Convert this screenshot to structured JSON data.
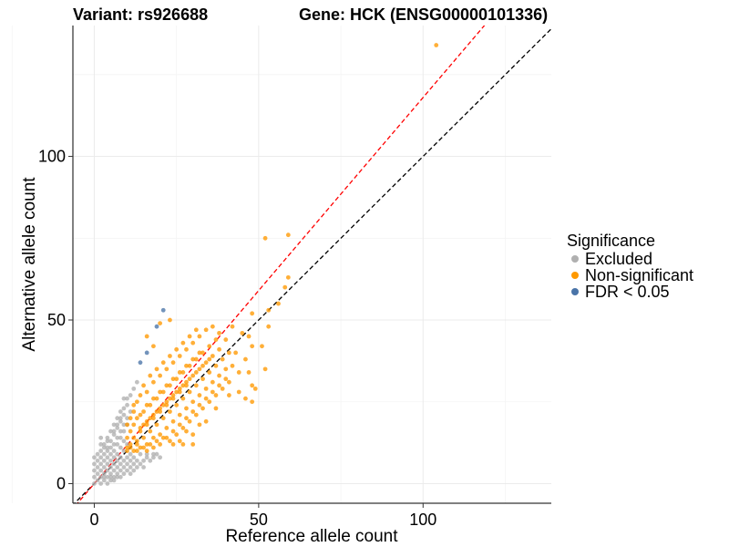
{
  "chart_data": {
    "type": "scatter",
    "title_left": "Variant: rs926688",
    "title_right": "Gene: HCK (ENSG00000101336)",
    "xlabel": "Reference allele count",
    "ylabel": "Alternative allele count",
    "xlim": [
      -6.5,
      139
    ],
    "ylim": [
      -6,
      140
    ],
    "xticks": [
      0,
      50,
      100
    ],
    "yticks": [
      0,
      50,
      100
    ],
    "grid": true,
    "legend": {
      "title": "Significance",
      "position": "right",
      "entries": [
        {
          "label": "Excluded",
          "color": "#b0b0b0"
        },
        {
          "label": "Non-significant",
          "color": "#ff9900"
        },
        {
          "label": "FDR < 0.05",
          "color": "#4a74a8"
        }
      ]
    },
    "reference_lines": [
      {
        "name": "identity",
        "slope": 1,
        "intercept": 0,
        "color": "#000000",
        "dash": "dashed"
      },
      {
        "name": "fit",
        "slope": 1.18,
        "intercept": 0,
        "color": "#ff0000",
        "dash": "dashed"
      }
    ],
    "series": [
      {
        "name": "Excluded",
        "color": "#b0b0b0",
        "points": [
          [
            0,
            0
          ],
          [
            1,
            1
          ],
          [
            0,
            2
          ],
          [
            2,
            0
          ],
          [
            1,
            3
          ],
          [
            3,
            1
          ],
          [
            2,
            2
          ],
          [
            0,
            4
          ],
          [
            4,
            0
          ],
          [
            1,
            5
          ],
          [
            2,
            4
          ],
          [
            3,
            3
          ],
          [
            4,
            2
          ],
          [
            5,
            1
          ],
          [
            0,
            6
          ],
          [
            2,
            6
          ],
          [
            3,
            5
          ],
          [
            4,
            4
          ],
          [
            5,
            3
          ],
          [
            6,
            2
          ],
          [
            1,
            7
          ],
          [
            3,
            7
          ],
          [
            4,
            6
          ],
          [
            5,
            5
          ],
          [
            6,
            4
          ],
          [
            7,
            3
          ],
          [
            2,
            8
          ],
          [
            4,
            8
          ],
          [
            5,
            7
          ],
          [
            6,
            6
          ],
          [
            7,
            5
          ],
          [
            8,
            4
          ],
          [
            3,
            9
          ],
          [
            5,
            9
          ],
          [
            6,
            8
          ],
          [
            7,
            7
          ],
          [
            8,
            6
          ],
          [
            9,
            5
          ],
          [
            2,
            10
          ],
          [
            4,
            11
          ],
          [
            6,
            10
          ],
          [
            7,
            9
          ],
          [
            8,
            8
          ],
          [
            9,
            7
          ],
          [
            10,
            6
          ],
          [
            3,
            12
          ],
          [
            5,
            13
          ],
          [
            7,
            12
          ],
          [
            8,
            11
          ],
          [
            9,
            10
          ],
          [
            10,
            8
          ],
          [
            11,
            7
          ],
          [
            4,
            14
          ],
          [
            6,
            15
          ],
          [
            8,
            14
          ],
          [
            9,
            13
          ],
          [
            10,
            12
          ],
          [
            11,
            9
          ],
          [
            12,
            8
          ],
          [
            5,
            16
          ],
          [
            7,
            17
          ],
          [
            9,
            16
          ],
          [
            6,
            18
          ],
          [
            8,
            19
          ],
          [
            10,
            18
          ],
          [
            7,
            20
          ],
          [
            9,
            21
          ],
          [
            8,
            22
          ],
          [
            10,
            24
          ],
          [
            9,
            26
          ],
          [
            11,
            27
          ],
          [
            12,
            29
          ],
          [
            13,
            31
          ],
          [
            3,
            2
          ],
          [
            5,
            2
          ],
          [
            6,
            1
          ],
          [
            7,
            2
          ],
          [
            8,
            2
          ],
          [
            9,
            3
          ],
          [
            10,
            4
          ],
          [
            11,
            5
          ],
          [
            12,
            6
          ],
          [
            13,
            7
          ],
          [
            14,
            6
          ],
          [
            15,
            7
          ],
          [
            16,
            8
          ],
          [
            11,
            3
          ],
          [
            13,
            5
          ],
          [
            15,
            5
          ],
          [
            17,
            7
          ],
          [
            18,
            8
          ],
          [
            14,
            9
          ],
          [
            16,
            9
          ],
          [
            18,
            9
          ],
          [
            12,
            4
          ],
          [
            20,
            8
          ],
          [
            19,
            9
          ],
          [
            4,
            10
          ],
          [
            2,
            12
          ],
          [
            1,
            9
          ],
          [
            0,
            8
          ],
          [
            3,
            11
          ],
          [
            2,
            14
          ],
          [
            5,
            11
          ],
          [
            6,
            12
          ],
          [
            4,
            13
          ],
          [
            7,
            14
          ],
          [
            6,
            16
          ],
          [
            8,
            16
          ],
          [
            7,
            18
          ],
          [
            9,
            18
          ],
          [
            8,
            20
          ],
          [
            10,
            20
          ],
          [
            9,
            23
          ],
          [
            11,
            22
          ],
          [
            10,
            26
          ]
        ]
      },
      {
        "name": "Non-significant",
        "color": "#ff9900",
        "points": [
          [
            10,
            10
          ],
          [
            11,
            12
          ],
          [
            12,
            10
          ],
          [
            10,
            14
          ],
          [
            13,
            13
          ],
          [
            14,
            11
          ],
          [
            11,
            16
          ],
          [
            12,
            18
          ],
          [
            15,
            14
          ],
          [
            16,
            12
          ],
          [
            13,
            20
          ],
          [
            14,
            17
          ],
          [
            17,
            16
          ],
          [
            18,
            14
          ],
          [
            12,
            22
          ],
          [
            15,
            22
          ],
          [
            16,
            19
          ],
          [
            19,
            18
          ],
          [
            20,
            15
          ],
          [
            13,
            25
          ],
          [
            17,
            24
          ],
          [
            18,
            21
          ],
          [
            21,
            20
          ],
          [
            22,
            17
          ],
          [
            14,
            27
          ],
          [
            16,
            28
          ],
          [
            19,
            26
          ],
          [
            20,
            23
          ],
          [
            23,
            22
          ],
          [
            24,
            19
          ],
          [
            15,
            30
          ],
          [
            18,
            31
          ],
          [
            21,
            28
          ],
          [
            22,
            25
          ],
          [
            25,
            24
          ],
          [
            26,
            21
          ],
          [
            17,
            33
          ],
          [
            20,
            33
          ],
          [
            23,
            30
          ],
          [
            24,
            27
          ],
          [
            27,
            26
          ],
          [
            28,
            23
          ],
          [
            19,
            35
          ],
          [
            22,
            35
          ],
          [
            25,
            32
          ],
          [
            26,
            29
          ],
          [
            29,
            28
          ],
          [
            30,
            25
          ],
          [
            21,
            37
          ],
          [
            24,
            37
          ],
          [
            27,
            34
          ],
          [
            28,
            31
          ],
          [
            31,
            30
          ],
          [
            32,
            27
          ],
          [
            23,
            39
          ],
          [
            26,
            39
          ],
          [
            29,
            36
          ],
          [
            30,
            33
          ],
          [
            33,
            32
          ],
          [
            34,
            29
          ],
          [
            25,
            41
          ],
          [
            28,
            41
          ],
          [
            31,
            38
          ],
          [
            32,
            35
          ],
          [
            35,
            34
          ],
          [
            36,
            31
          ],
          [
            27,
            43
          ],
          [
            30,
            43
          ],
          [
            33,
            40
          ],
          [
            34,
            37
          ],
          [
            37,
            36
          ],
          [
            38,
            33
          ],
          [
            29,
            45
          ],
          [
            32,
            45
          ],
          [
            35,
            42
          ],
          [
            36,
            39
          ],
          [
            39,
            38
          ],
          [
            40,
            35
          ],
          [
            31,
            47
          ],
          [
            34,
            47
          ],
          [
            37,
            44
          ],
          [
            38,
            41
          ],
          [
            41,
            40
          ],
          [
            20,
            12
          ],
          [
            22,
            14
          ],
          [
            24,
            16
          ],
          [
            26,
            18
          ],
          [
            28,
            20
          ],
          [
            30,
            22
          ],
          [
            32,
            24
          ],
          [
            34,
            26
          ],
          [
            36,
            28
          ],
          [
            38,
            30
          ],
          [
            40,
            32
          ],
          [
            23,
            13
          ],
          [
            25,
            15
          ],
          [
            27,
            17
          ],
          [
            29,
            19
          ],
          [
            31,
            21
          ],
          [
            33,
            23
          ],
          [
            35,
            25
          ],
          [
            37,
            27
          ],
          [
            39,
            29
          ],
          [
            41,
            31
          ],
          [
            15,
            18
          ],
          [
            17,
            20
          ],
          [
            19,
            22
          ],
          [
            21,
            24
          ],
          [
            23,
            26
          ],
          [
            25,
            28
          ],
          [
            27,
            30
          ],
          [
            29,
            32
          ],
          [
            31,
            34
          ],
          [
            33,
            36
          ],
          [
            35,
            38
          ],
          [
            12,
            14
          ],
          [
            14,
            16
          ],
          [
            16,
            18
          ],
          [
            18,
            20
          ],
          [
            20,
            22
          ],
          [
            22,
            24
          ],
          [
            24,
            26
          ],
          [
            26,
            28
          ],
          [
            28,
            30
          ],
          [
            10,
            18
          ],
          [
            11,
            20
          ],
          [
            12,
            24
          ],
          [
            14,
            21
          ],
          [
            16,
            24
          ],
          [
            18,
            26
          ],
          [
            20,
            28
          ],
          [
            22,
            30
          ],
          [
            24,
            32
          ],
          [
            26,
            34
          ],
          [
            28,
            36
          ],
          [
            30,
            38
          ],
          [
            32,
            40
          ],
          [
            20,
            49
          ],
          [
            23,
            50
          ],
          [
            16,
            45
          ],
          [
            18,
            42
          ],
          [
            42,
            36
          ],
          [
            44,
            34
          ],
          [
            46,
            38
          ],
          [
            43,
            40
          ],
          [
            45,
            46
          ],
          [
            47,
            45
          ],
          [
            48,
            42
          ],
          [
            40,
            44
          ],
          [
            42,
            48
          ],
          [
            38,
            46
          ],
          [
            36,
            48
          ],
          [
            48,
            52
          ],
          [
            44,
            28
          ],
          [
            41,
            27
          ],
          [
            46,
            26
          ],
          [
            48,
            30
          ],
          [
            47,
            34
          ],
          [
            52,
            35
          ],
          [
            48,
            25
          ],
          [
            49,
            29
          ],
          [
            53,
            48
          ],
          [
            51,
            42
          ],
          [
            52,
            75
          ],
          [
            56,
            55
          ],
          [
            58,
            60
          ],
          [
            59,
            63
          ],
          [
            59,
            76
          ],
          [
            53,
            53
          ],
          [
            104,
            134
          ],
          [
            37,
            23
          ],
          [
            30,
            15
          ],
          [
            32,
            18
          ],
          [
            34,
            19
          ],
          [
            28,
            16
          ],
          [
            30,
            12
          ],
          [
            26,
            13
          ],
          [
            15,
            11
          ],
          [
            17,
            12
          ],
          [
            19,
            13
          ],
          [
            21,
            14
          ],
          [
            13,
            12
          ],
          [
            11,
            11
          ],
          [
            10,
            11
          ],
          [
            13,
            10
          ],
          [
            16,
            10
          ],
          [
            18,
            11
          ],
          [
            24,
            12
          ],
          [
            27,
            12
          ]
        ]
      },
      {
        "name": "FDR < 0.05",
        "color": "#4a74a8",
        "points": [
          [
            21,
            53
          ],
          [
            19,
            48
          ],
          [
            16,
            40
          ],
          [
            14,
            37
          ]
        ]
      }
    ]
  }
}
